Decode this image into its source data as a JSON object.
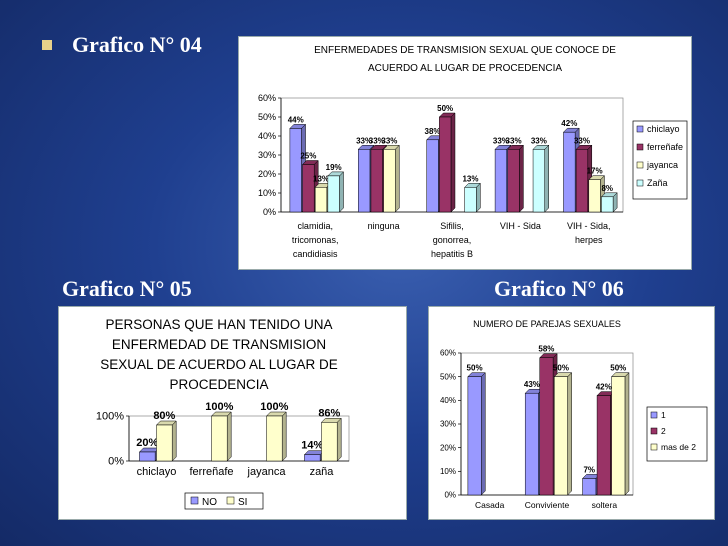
{
  "headings": {
    "g04": "Grafico N° 04",
    "g05": "Grafico N° 05",
    "g06": "Grafico N° 06"
  },
  "chart_data": [
    {
      "type": "bar",
      "title": "ENFERMEDADES DE TRANSMISION SEXUAL QUE CONOCE DE ACUERDO AL LUGAR DE PROCEDENCIA",
      "title_lines": [
        "ENFERMEDADES DE TRANSMISION SEXUAL QUE CONOCE DE",
        "ACUERDO AL LUGAR DE PROCEDENCIA"
      ],
      "categories": [
        "clamidia, tricomonas, candidiasis",
        "ninguna",
        "Sifilis, gonorrea, hepatitis B",
        "VIH - Sida",
        "VIH - Sida, herpes"
      ],
      "category_lines": [
        [
          "clamidia,",
          "tricomonas,",
          "candidiasis"
        ],
        [
          "ninguna"
        ],
        [
          "Sifilis,",
          "gonorrea,",
          "hepatitis B"
        ],
        [
          "VIH - Sida"
        ],
        [
          "VIH - Sida,",
          "herpes"
        ]
      ],
      "series": [
        {
          "name": "chiclayo",
          "values": [
            44,
            33,
            38,
            33,
            42
          ],
          "color": "#9999ff"
        },
        {
          "name": "ferreñafe",
          "values": [
            25,
            33,
            50,
            33,
            33
          ],
          "color": "#993366"
        },
        {
          "name": "jayanca",
          "values": [
            13,
            33,
            0,
            0,
            17
          ],
          "color": "#ffffcc"
        },
        {
          "name": "Zaña",
          "values": [
            19,
            0,
            13,
            33,
            8
          ],
          "color": "#ccffff"
        }
      ],
      "data_labels": [
        [
          "44%",
          "33%",
          "38%",
          "33%",
          "42%"
        ],
        [
          "25%",
          "33%",
          "50%",
          "33%",
          "33%"
        ],
        [
          "13%",
          "33%",
          "",
          "",
          "17%"
        ],
        [
          "19%",
          "",
          "13%",
          "33%",
          "8%"
        ]
      ],
      "y_ticks": [
        "0%",
        "10%",
        "20%",
        "30%",
        "40%",
        "50%",
        "60%"
      ],
      "ylim": [
        0,
        60
      ],
      "legend": "right"
    },
    {
      "type": "bar",
      "title": "PERSONAS QUE HAN TENIDO UNA ENFERMEDAD DE TRANSMISION SEXUAL DE ACUERDO AL LUGAR DE PROCEDENCIA",
      "title_lines": [
        "PERSONAS QUE HAN TENIDO UNA",
        "ENFERMEDAD DE TRANSMISION",
        "SEXUAL DE ACUERDO AL LUGAR DE",
        "PROCEDENCIA"
      ],
      "categories": [
        "chiclayo",
        "ferreñafe",
        "jayanca",
        "zaña"
      ],
      "series": [
        {
          "name": "NO",
          "values": [
            20,
            0,
            0,
            14
          ],
          "color": "#9999ff"
        },
        {
          "name": "SI",
          "values": [
            80,
            100,
            100,
            86
          ],
          "color": "#ffffcc"
        }
      ],
      "data_labels": [
        [
          "20%",
          "",
          "",
          "14%"
        ],
        [
          "80%",
          "100%",
          "100%",
          "86%"
        ]
      ],
      "y_ticks": [
        "0%",
        "100%"
      ],
      "ylim": [
        0,
        100
      ],
      "legend": "bottom"
    },
    {
      "type": "bar",
      "title": "NUMERO DE PAREJAS SEXUALES",
      "title_lines": [
        "NUMERO DE PAREJAS SEXUALES"
      ],
      "categories": [
        "Casada",
        "Conviviente",
        "soltera"
      ],
      "series": [
        {
          "name": "1",
          "values": [
            50,
            43,
            7
          ],
          "color": "#9999ff"
        },
        {
          "name": "2",
          "values": [
            0,
            58,
            42
          ],
          "color": "#993366"
        },
        {
          "name": "mas de 2",
          "values": [
            0,
            50,
            50
          ],
          "color": "#ffffcc"
        }
      ],
      "data_labels": [
        [
          "50%",
          "43%",
          "7%"
        ],
        [
          "",
          "58%",
          "42%"
        ],
        [
          "",
          "50%",
          "50%"
        ]
      ],
      "y_ticks": [
        "0%",
        "10%",
        "20%",
        "30%",
        "40%",
        "50%",
        "60%"
      ],
      "ylim": [
        0,
        60
      ],
      "legend": "right"
    }
  ]
}
